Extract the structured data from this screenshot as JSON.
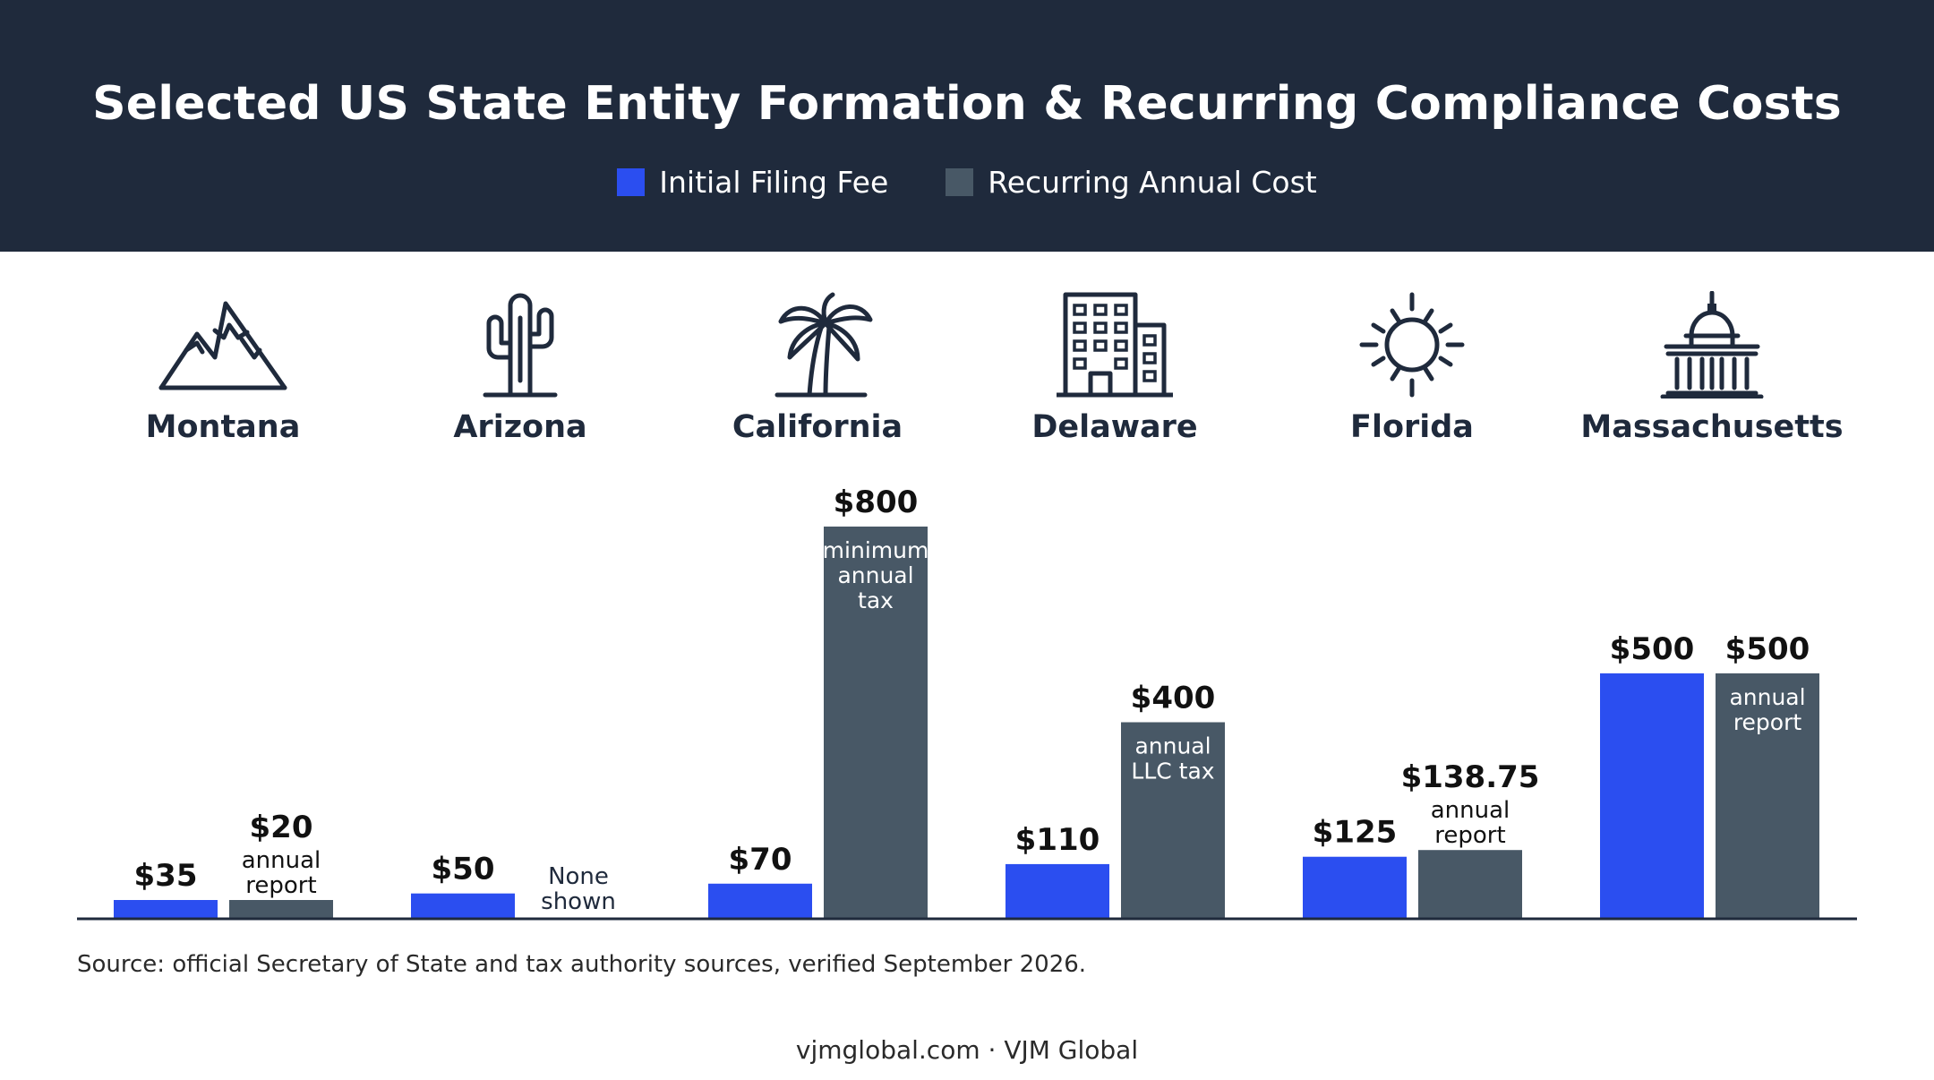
{
  "header": {
    "title": "Selected US State Entity Formation & Recurring Compliance Costs"
  },
  "colors": {
    "header_bg": "#1f2a3c",
    "initial": "#2b4ef0",
    "recurring": "#485866",
    "axis": "#1f2a3c"
  },
  "chart_data": {
    "type": "bar",
    "categories": [
      "Montana",
      "Arizona",
      "California",
      "Delaware",
      "Florida",
      "Massachusetts"
    ],
    "category_icons": [
      "mountain-icon",
      "cactus-icon",
      "palm-tree-icon",
      "office-building-icon",
      "sun-icon",
      "capitol-building-icon"
    ],
    "series": [
      {
        "name": "Initial Filing Fee",
        "color": "#2b4ef0",
        "values": [
          35,
          50,
          70,
          110,
          125,
          500
        ],
        "value_labels": [
          "$35",
          "$50",
          "$70",
          "$110",
          "$125",
          "$500"
        ],
        "notes": [
          "",
          "",
          "",
          "",
          "",
          ""
        ]
      },
      {
        "name": "Recurring Annual Cost",
        "color": "#485866",
        "values": [
          20,
          null,
          800,
          400,
          138.75,
          500
        ],
        "value_labels": [
          "$20",
          "",
          "$800",
          "$400",
          "$138.75",
          "$500"
        ],
        "notes": [
          "annual report",
          "None shown",
          "minimum annual tax",
          "annual LLC tax",
          "annual report",
          "annual report"
        ]
      }
    ],
    "title": "Selected US State Entity Formation & Recurring Compliance Costs",
    "xlabel": "",
    "ylabel": "",
    "ylim": [
      0,
      800
    ],
    "grid": false,
    "legend": "top-center"
  },
  "source": "Source: official Secretary of State and tax authority sources, verified September 2026.",
  "footer": "vjmglobal.com · VJM Global"
}
